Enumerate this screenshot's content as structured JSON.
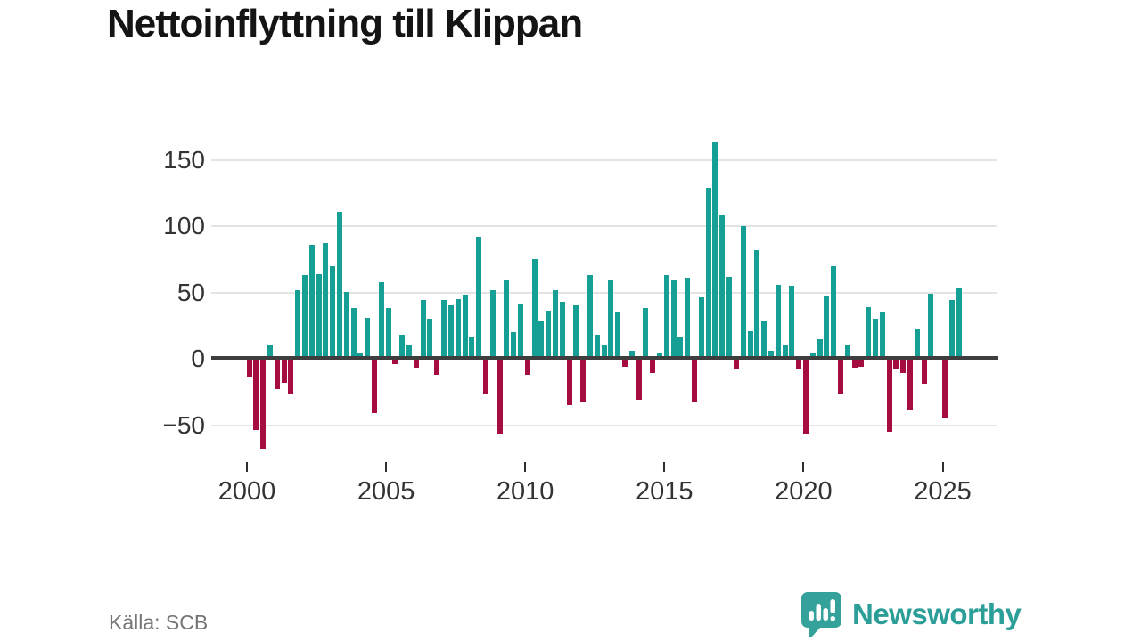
{
  "title": "Nettoinflyttning till Klippan",
  "source": "Källa: SCB",
  "branding": {
    "name": "Newsworthy",
    "icon": "newsworthy-chart-bubble-icon"
  },
  "colors": {
    "positive_bar": "#16a095",
    "negative_bar": "#a50d40",
    "axis": "#3e3e3e",
    "grid": "#e4e4e4",
    "brand_teal": "#2c9e98",
    "title_text": "#141414",
    "tick_text": "#333333",
    "source_text": "#757575"
  },
  "chart_data": {
    "type": "bar",
    "title": "Nettoinflyttning till Klippan",
    "x_unit": "quarter",
    "start": "2000-Q1",
    "end": "2025-Q3",
    "start_year": 2000,
    "bars_per_year": 4,
    "x_tick_labels": [
      "2000",
      "2005",
      "2010",
      "2015",
      "2020",
      "2025"
    ],
    "x_tick_years": [
      2000,
      2005,
      2010,
      2015,
      2020,
      2025
    ],
    "y_tick_labels": [
      "150",
      "100",
      "50",
      "0",
      "−50"
    ],
    "y_ticks": [
      150,
      100,
      50,
      0,
      -50
    ],
    "ylim": [
      -75,
      170
    ],
    "grid": "horizontal",
    "legend": "none",
    "series": [
      {
        "name": "Nettoinflyttning",
        "values": [
          -14,
          -54,
          -68,
          11,
          -23,
          -18,
          -27,
          52,
          63,
          86,
          64,
          87,
          70,
          111,
          50,
          38,
          4,
          31,
          -41,
          58,
          38,
          -4,
          18,
          10,
          -7,
          44,
          30,
          -12,
          44,
          40,
          45,
          48,
          16,
          92,
          -27,
          52,
          -57,
          60,
          20,
          41,
          -12,
          75,
          29,
          36,
          52,
          43,
          -35,
          40,
          -33,
          63,
          18,
          10,
          60,
          35,
          -6,
          6,
          -31,
          38,
          -11,
          5,
          63,
          59,
          17,
          61,
          -32,
          46,
          129,
          163,
          108,
          62,
          -8,
          100,
          21,
          82,
          28,
          6,
          56,
          11,
          55,
          -8,
          -57,
          5,
          15,
          47,
          70,
          -26,
          10,
          -7,
          -6,
          39,
          30,
          35,
          -55,
          -8,
          -11,
          -39,
          23,
          -19,
          49,
          0,
          -45,
          44,
          53
        ]
      }
    ]
  }
}
